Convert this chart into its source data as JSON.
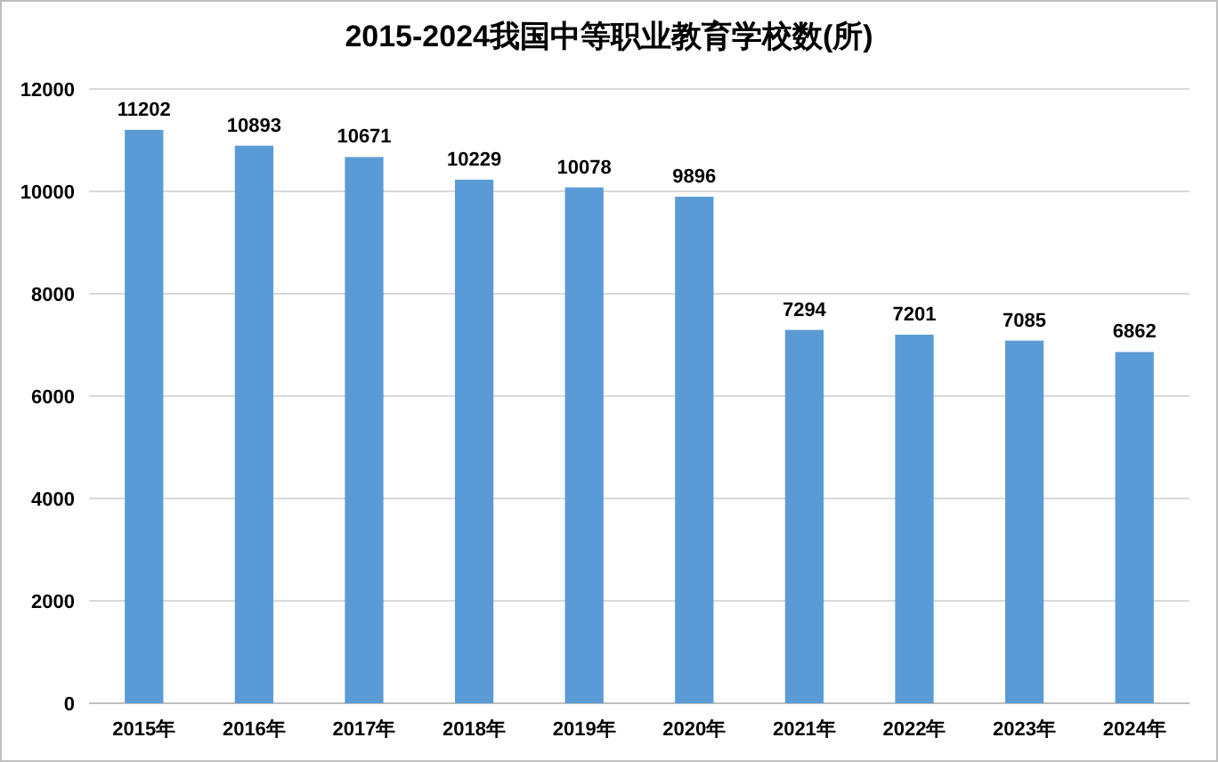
{
  "chart_data": {
    "type": "bar",
    "title": "2015-2024我国中等职业教育学校数(所)",
    "categories": [
      "2015年",
      "2016年",
      "2017年",
      "2018年",
      "2019年",
      "2020年",
      "2021年",
      "2022年",
      "2023年",
      "2024年"
    ],
    "values": [
      11202,
      10893,
      10671,
      10229,
      10078,
      9896,
      7294,
      7201,
      7085,
      6862
    ],
    "color": "#5b9bd5",
    "ylim": [
      0,
      12000
    ],
    "yticks": [
      0,
      2000,
      4000,
      6000,
      8000,
      10000,
      12000
    ],
    "grid": "y",
    "data_labels": true
  }
}
